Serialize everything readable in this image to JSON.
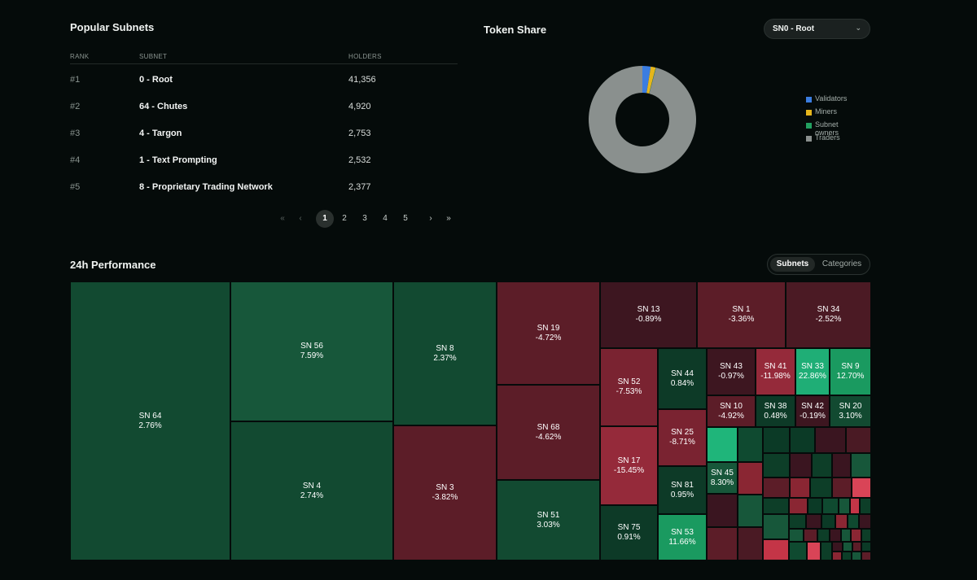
{
  "popular": {
    "title": "Popular Subnets",
    "headers": {
      "rank": "RANK",
      "subnet": "SUBNET",
      "holders": "HOLDERS"
    },
    "rows": [
      {
        "rank": "#1",
        "name": "0 - Root",
        "holders": "41,356"
      },
      {
        "rank": "#2",
        "name": "64 - Chutes",
        "holders": "4,920"
      },
      {
        "rank": "#3",
        "name": "4 - Targon",
        "holders": "2,753"
      },
      {
        "rank": "#4",
        "name": "1 - Text Prompting",
        "holders": "2,532"
      },
      {
        "rank": "#5",
        "name": "8 - Proprietary Trading Network",
        "holders": "2,377"
      }
    ],
    "pagination": {
      "first": "«",
      "prev": "‹",
      "pages": [
        "1",
        "2",
        "3",
        "4",
        "5"
      ],
      "current": "1",
      "next": "›",
      "last": "»"
    }
  },
  "token_share": {
    "title": "Token Share",
    "selected": "SN0 - Root",
    "chevron_icon": "chevron-down-icon",
    "chart_data": {
      "type": "pie",
      "title": "Token Share",
      "categories": [
        "Validators",
        "Miners",
        "Subnet owners",
        "Traders"
      ],
      "values": [
        2.5,
        1.5,
        0.1,
        95.9
      ],
      "colors": [
        "#3b7de0",
        "#e6b61c",
        "#22a060",
        "#8a908e"
      ],
      "legend_position": "right"
    }
  },
  "performance": {
    "title": "24h Performance",
    "tabs": [
      "Subnets",
      "Categories"
    ],
    "active_tab": "Subnets",
    "chart_data": {
      "type": "treemap",
      "title": "24h Performance",
      "series": [
        {
          "name": "SN 64",
          "change": 2.76,
          "label": "2.76%"
        },
        {
          "name": "SN 56",
          "change": 7.59,
          "label": "7.59%"
        },
        {
          "name": "SN 4",
          "change": 2.74,
          "label": "2.74%"
        },
        {
          "name": "SN 8",
          "change": 2.37,
          "label": "2.37%"
        },
        {
          "name": "SN 3",
          "change": -3.82,
          "label": "-3.82%"
        },
        {
          "name": "SN 19",
          "change": -4.72,
          "label": "-4.72%"
        },
        {
          "name": "SN 68",
          "change": -4.62,
          "label": "-4.62%"
        },
        {
          "name": "SN 51",
          "change": 3.03,
          "label": "3.03%"
        },
        {
          "name": "SN 13",
          "change": -0.89,
          "label": "-0.89%"
        },
        {
          "name": "SN 1",
          "change": -3.36,
          "label": "-3.36%"
        },
        {
          "name": "SN 34",
          "change": -2.52,
          "label": "-2.52%"
        },
        {
          "name": "SN 52",
          "change": -7.53,
          "label": "-7.53%"
        },
        {
          "name": "SN 44",
          "change": 0.84,
          "label": "0.84%"
        },
        {
          "name": "SN 43",
          "change": -0.97,
          "label": "-0.97%"
        },
        {
          "name": "SN 41",
          "change": -11.98,
          "label": "-11.98%"
        },
        {
          "name": "SN 33",
          "change": 22.86,
          "label": "22.86%"
        },
        {
          "name": "SN 9",
          "change": 12.7,
          "label": "12.70%"
        },
        {
          "name": "SN 10",
          "change": -4.92,
          "label": "-4.92%"
        },
        {
          "name": "SN 38",
          "change": 0.48,
          "label": "0.48%"
        },
        {
          "name": "SN 42",
          "change": -0.19,
          "label": "-0.19%"
        },
        {
          "name": "SN 20",
          "change": 3.1,
          "label": "3.10%"
        },
        {
          "name": "SN 25",
          "change": -8.71,
          "label": "-8.71%"
        },
        {
          "name": "SN 17",
          "change": -15.45,
          "label": "-15.45%"
        },
        {
          "name": "SN 45",
          "change": 8.3,
          "label": "8.30%"
        },
        {
          "name": "SN 81",
          "change": 0.95,
          "label": "0.95%"
        },
        {
          "name": "SN 75",
          "change": 0.91,
          "label": "0.91%"
        },
        {
          "name": "SN 53",
          "change": 11.66,
          "label": "11.66%"
        }
      ]
    }
  },
  "colors": {
    "background": "#050b0a",
    "gain": "#17573a",
    "loss": "#5c1d28"
  }
}
